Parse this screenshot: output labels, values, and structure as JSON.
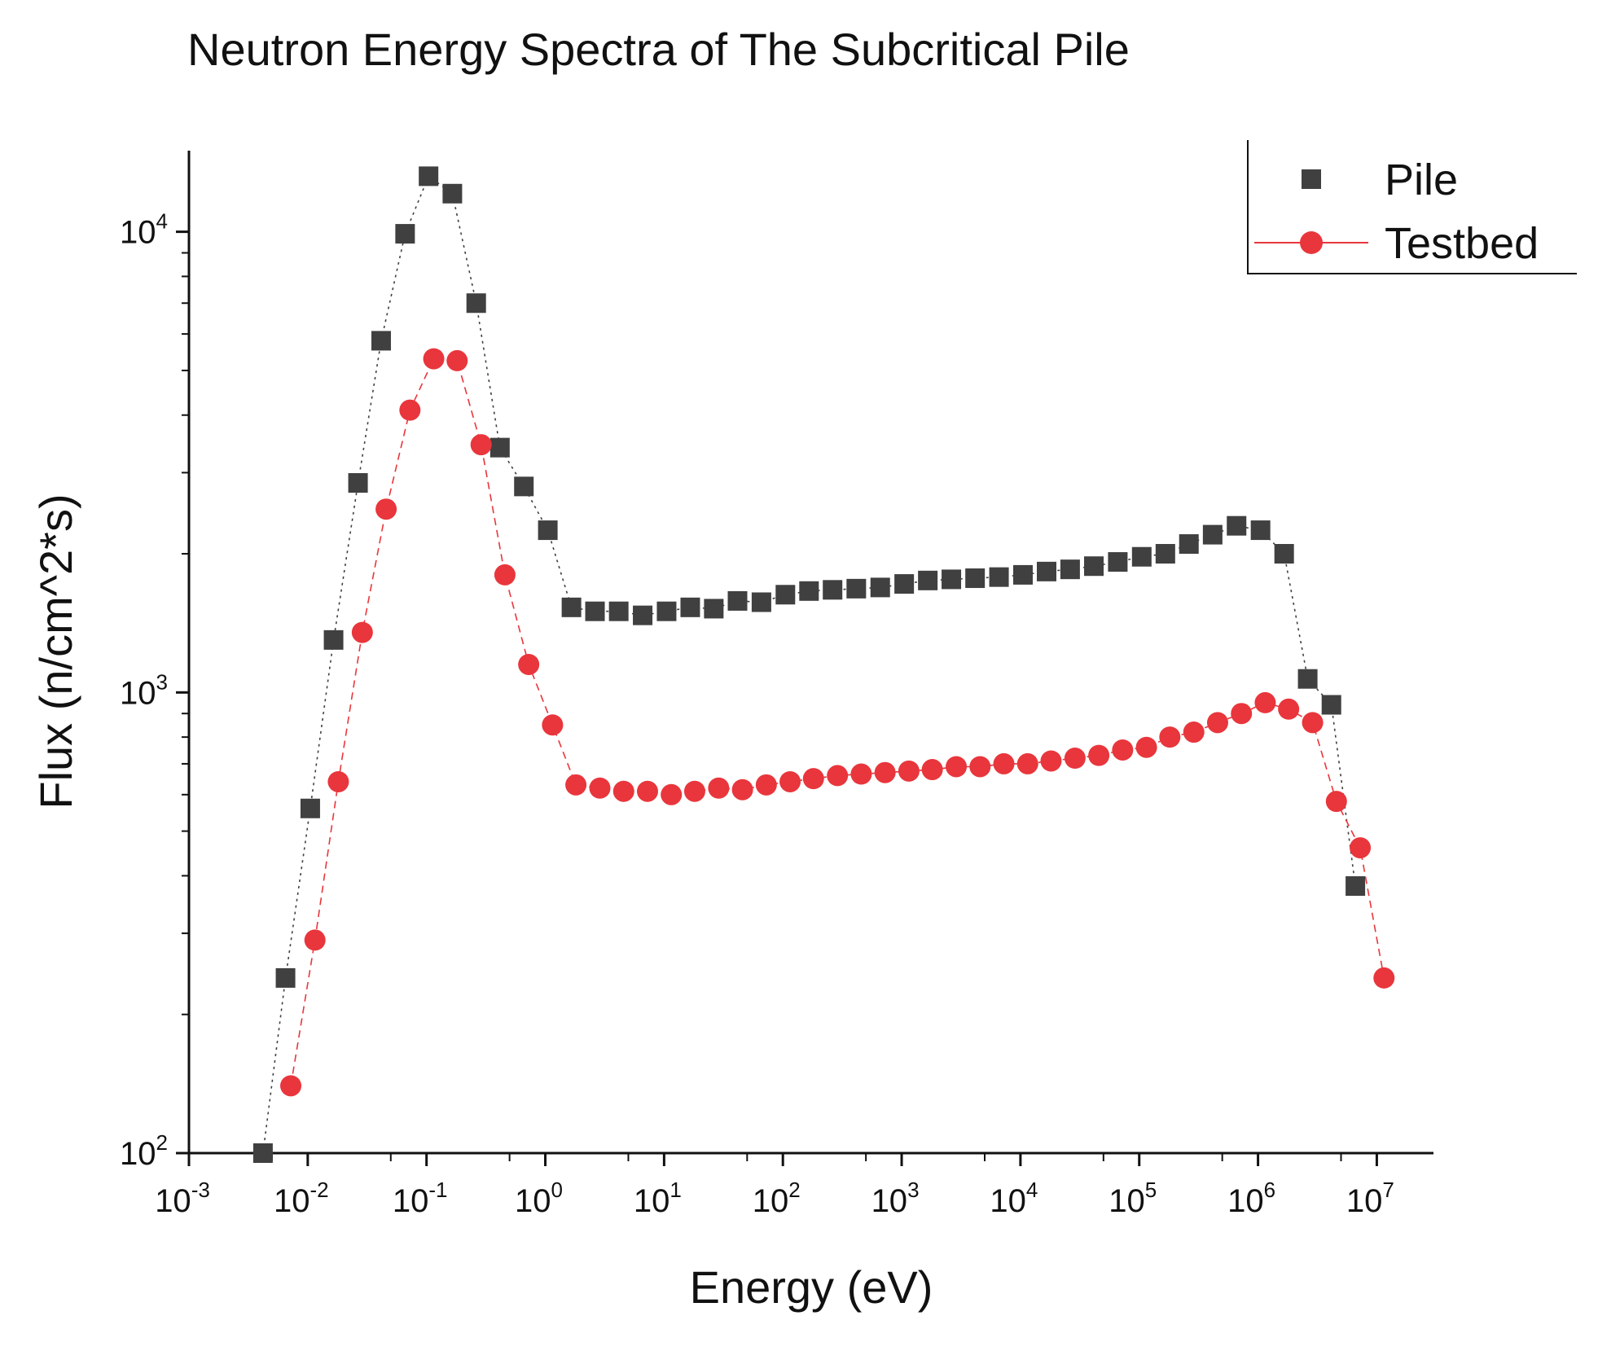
{
  "chart_data": {
    "type": "scatter",
    "title": "Neutron Energy Spectra of The Subcritical Pile",
    "xlabel": "Energy (eV)",
    "ylabel": "Flux (n/cm^2*s)",
    "xscale": "log",
    "yscale": "log",
    "xlim": [
      0.001,
      30000000
    ],
    "ylim": [
      100,
      15000
    ],
    "x_ticks": [
      {
        "base": "10",
        "exp": "-3",
        "value": 0.001
      },
      {
        "base": "10",
        "exp": "-2",
        "value": 0.01
      },
      {
        "base": "10",
        "exp": "-1",
        "value": 0.1
      },
      {
        "base": "10",
        "exp": "0",
        "value": 1
      },
      {
        "base": "10",
        "exp": "1",
        "value": 10
      },
      {
        "base": "10",
        "exp": "2",
        "value": 100
      },
      {
        "base": "10",
        "exp": "3",
        "value": 1000
      },
      {
        "base": "10",
        "exp": "4",
        "value": 10000
      },
      {
        "base": "10",
        "exp": "5",
        "value": 100000
      },
      {
        "base": "10",
        "exp": "6",
        "value": 1000000
      },
      {
        "base": "10",
        "exp": "7",
        "value": 10000000
      }
    ],
    "y_ticks": [
      {
        "base": "10",
        "exp": "2",
        "value": 100
      },
      {
        "base": "10",
        "exp": "3",
        "value": 1000
      },
      {
        "base": "10",
        "exp": "4",
        "value": 10000
      }
    ],
    "legend_position": "top-right",
    "series": [
      {
        "name": "Pile",
        "marker": "square",
        "line": "dotted",
        "color": "#404040",
        "x": [
          0.0042,
          0.0065,
          0.0105,
          0.0165,
          0.0265,
          0.0415,
          0.066,
          0.104,
          0.165,
          0.262,
          0.415,
          0.66,
          1.05,
          1.66,
          2.62,
          4.15,
          6.6,
          10.5,
          16.6,
          26.2,
          41.5,
          66,
          105,
          166,
          262,
          415,
          660,
          1050,
          1660,
          2620,
          4150,
          6600,
          10500,
          16600,
          26200,
          41500,
          66000,
          105000,
          166000,
          262000,
          415000,
          660000,
          1050000,
          1660000,
          2620000,
          4150000,
          6600000
        ],
        "y": [
          100,
          240,
          560,
          1300,
          2850,
          5800,
          9900,
          13200,
          12100,
          7000,
          3400,
          2800,
          2250,
          1530,
          1500,
          1500,
          1470,
          1500,
          1530,
          1520,
          1580,
          1570,
          1630,
          1660,
          1670,
          1680,
          1690,
          1720,
          1750,
          1760,
          1770,
          1780,
          1800,
          1830,
          1850,
          1880,
          1920,
          1970,
          2000,
          2100,
          2200,
          2300,
          2250,
          2000,
          1070,
          940,
          380
        ]
      },
      {
        "name": "Testbed",
        "marker": "circle",
        "line": "dashed",
        "color": "#e8363c",
        "x": [
          0.0072,
          0.0115,
          0.0181,
          0.0288,
          0.0457,
          0.0725,
          0.115,
          0.181,
          0.288,
          0.457,
          0.725,
          1.15,
          1.81,
          2.88,
          4.57,
          7.25,
          11.5,
          18.1,
          28.8,
          45.7,
          72.5,
          115,
          181,
          288,
          457,
          725,
          1150,
          1810,
          2880,
          4570,
          7250,
          11500,
          18100,
          28800,
          45700,
          72500,
          115000,
          181000,
          288000,
          457000,
          725000,
          1150000,
          1810000,
          2880000,
          4570000,
          7250000,
          11500000
        ],
        "y": [
          140,
          290,
          640,
          1350,
          2500,
          4100,
          5300,
          5250,
          3450,
          1800,
          1150,
          850,
          630,
          620,
          610,
          610,
          600,
          610,
          620,
          615,
          630,
          640,
          650,
          660,
          665,
          670,
          675,
          680,
          690,
          690,
          700,
          700,
          710,
          720,
          730,
          750,
          760,
          800,
          820,
          860,
          900,
          950,
          920,
          860,
          580,
          460,
          240
        ]
      }
    ]
  }
}
